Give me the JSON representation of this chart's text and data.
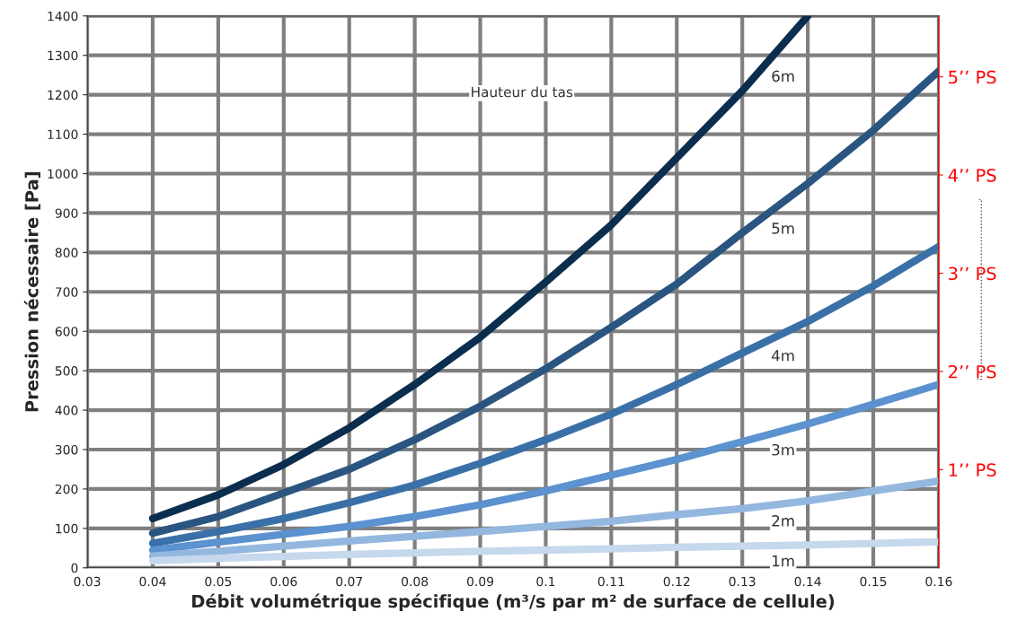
{
  "chart_data": {
    "type": "line",
    "xlabel": "Débit volumétrique spécifique (m³/s par m² de surface de cellule)",
    "ylabel": "Pression nécessaire [Pa]",
    "annotations": [
      "Hauteur du tas"
    ],
    "x": [
      0.04,
      0.05,
      0.06,
      0.07,
      0.08,
      0.09,
      0.1,
      0.11,
      0.12,
      0.13,
      0.14,
      0.15,
      0.16
    ],
    "series": [
      {
        "name": "6m",
        "color": "#0b2e4f",
        "values": [
          125,
          185,
          262,
          355,
          465,
          585,
          725,
          870,
          1040,
          1210,
          1400,
          null,
          null
        ]
      },
      {
        "name": "5m",
        "color": "#2a5580",
        "values": [
          88,
          130,
          190,
          250,
          325,
          410,
          505,
          610,
          720,
          850,
          975,
          1110,
          1260
        ]
      },
      {
        "name": "4m",
        "color": "#3a70a8",
        "values": [
          62,
          92,
          125,
          165,
          210,
          265,
          325,
          390,
          465,
          545,
          625,
          715,
          815
        ]
      },
      {
        "name": "3m",
        "color": "#5b92cf",
        "values": [
          45,
          65,
          85,
          105,
          130,
          160,
          195,
          235,
          275,
          320,
          365,
          415,
          465
        ]
      },
      {
        "name": "2m",
        "color": "#93b7df",
        "values": [
          30,
          42,
          55,
          68,
          80,
          92,
          105,
          118,
          135,
          150,
          170,
          195,
          220
        ]
      },
      {
        "name": "1m",
        "color": "#c5d8ec",
        "values": [
          18,
          24,
          29,
          34,
          38,
          42,
          45,
          48,
          52,
          55,
          58,
          62,
          66
        ]
      }
    ],
    "xlim": [
      0.03,
      0.16
    ],
    "xticks": [
      0.03,
      0.04,
      0.05,
      0.06,
      0.07,
      0.08,
      0.09,
      0.1,
      0.11,
      0.12,
      0.13,
      0.14,
      0.15,
      0.16
    ],
    "ylim": [
      0,
      1400
    ],
    "yticks": [
      0,
      100,
      200,
      300,
      400,
      500,
      600,
      700,
      800,
      900,
      1000,
      1100,
      1200,
      1300,
      1400
    ],
    "y2lim": [
      0,
      5.62
    ],
    "y2ticks": [
      {
        "value": 1,
        "label": "1’’ PS"
      },
      {
        "value": 2,
        "label": "2’’ PS"
      },
      {
        "value": 3,
        "label": "3’’ PS"
      },
      {
        "value": 4,
        "label": "4’’ PS"
      },
      {
        "value": 5,
        "label": "5’’ PS"
      }
    ],
    "grid": true,
    "legend": false,
    "marker": "none",
    "line_style": "solid"
  }
}
